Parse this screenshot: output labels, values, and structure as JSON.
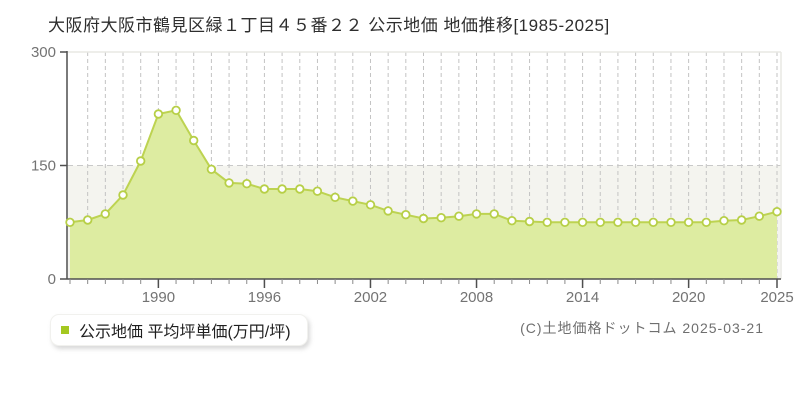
{
  "page": {
    "title": "大阪府大阪市鶴見区緑１丁目４５番２２ 公示地価 地価推移[1985-2025]",
    "copyright": "(C)土地価格ドットコム 2025-03-21"
  },
  "legend": {
    "label": "公示地価 平均坪単価(万円/坪)",
    "marker_color": "#a4c820"
  },
  "chart_data": {
    "type": "area",
    "title": "大阪府大阪市鶴見区緑１丁目４５番２２ 公示地価 地価推移[1985-2025]",
    "x": [
      1985,
      1986,
      1987,
      1988,
      1989,
      1990,
      1991,
      1992,
      1993,
      1994,
      1995,
      1996,
      1997,
      1998,
      1999,
      2000,
      2001,
      2002,
      2003,
      2004,
      2005,
      2006,
      2007,
      2008,
      2009,
      2010,
      2011,
      2012,
      2013,
      2014,
      2015,
      2016,
      2017,
      2018,
      2019,
      2020,
      2021,
      2022,
      2023,
      2024,
      2025
    ],
    "series": [
      {
        "name": "公示地価 平均坪単価(万円/坪)",
        "values": [
          75,
          78,
          86,
          111,
          156,
          218,
          223,
          183,
          145,
          127,
          126,
          119,
          119,
          119,
          116,
          108,
          103,
          98,
          90,
          85,
          80,
          81,
          83,
          86,
          86,
          77,
          76,
          75,
          75,
          75,
          75,
          75,
          75,
          75,
          75,
          75,
          75,
          77,
          78,
          83,
          89
        ]
      }
    ],
    "unit": "万円/坪",
    "xlabel": "",
    "ylabel": "",
    "ylim": [
      0,
      300
    ],
    "y_ticks": [
      0,
      150,
      300
    ],
    "x_tick_years": [
      1990,
      1996,
      2002,
      2008,
      2014,
      2020,
      2025
    ],
    "grid": {
      "vertical": "yearly-dashed",
      "horizontal_lines": [
        150
      ],
      "lower_band": [
        0,
        150
      ]
    },
    "legend_position": "bottom-left",
    "colors": {
      "line": "#bdd351",
      "fill": "#ddeca1",
      "marker_fill": "#ffffff",
      "marker_stroke": "#b7cf47",
      "band": "#f4f4ef",
      "grid": "#c3c3c3",
      "axis": "#4f4f4f",
      "border": "#e8e8e4",
      "tick_label": "#737373"
    }
  }
}
